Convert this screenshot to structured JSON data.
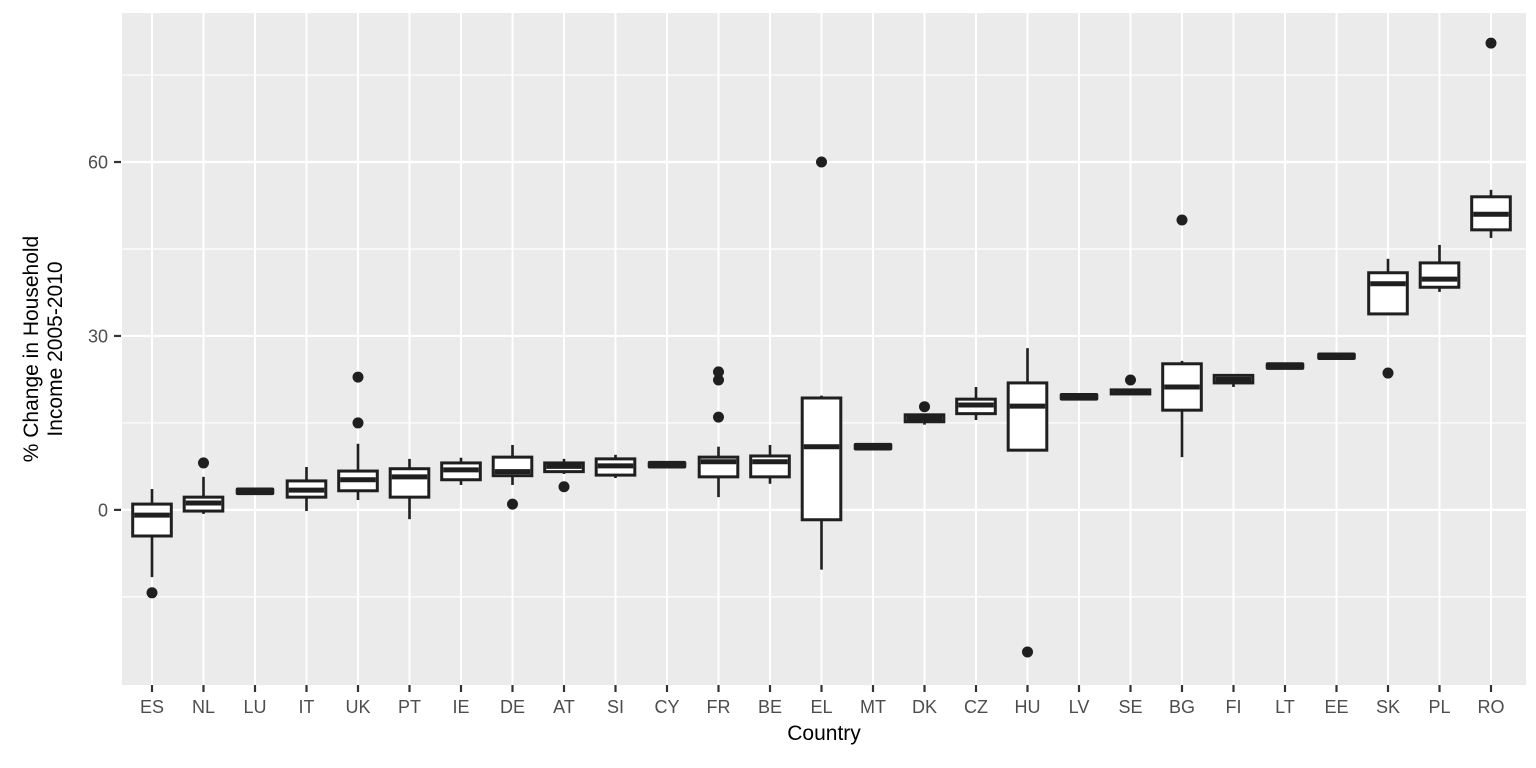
{
  "chart_data": {
    "type": "boxplot",
    "title": "",
    "xlabel": "Country",
    "ylabel": "% Change in Household Income 2005-2010",
    "ylabel_lines": [
      "% Change in Household",
      "Income 2005-2010"
    ],
    "yticks": [
      0,
      30,
      60
    ],
    "yminor": [
      -15,
      15,
      45,
      75
    ],
    "ylim": [
      -30.2,
      85.7
    ],
    "grid": "white major+minor horizontal lines and vertical category lines on grey panel",
    "legend_position": "none",
    "categories": [
      "ES",
      "NL",
      "LU",
      "IT",
      "UK",
      "PT",
      "IE",
      "DE",
      "AT",
      "SI",
      "CY",
      "FR",
      "BE",
      "EL",
      "MT",
      "DK",
      "CZ",
      "HU",
      "LV",
      "SE",
      "BG",
      "FI",
      "LT",
      "EE",
      "SK",
      "PL",
      "RO"
    ],
    "series": [
      {
        "label": "ES",
        "whislo": -11.6,
        "q1": -4.5,
        "med": -0.9,
        "q3": 1.0,
        "whishi": 3.6,
        "outliers": [
          -14.3
        ]
      },
      {
        "label": "NL",
        "whislo": -0.7,
        "q1": -0.2,
        "med": 1.2,
        "q3": 2.2,
        "whishi": 5.7,
        "outliers": [
          8.1
        ]
      },
      {
        "label": "LU",
        "whislo": 3.2,
        "q1": 3.2,
        "med": 3.2,
        "q3": 3.2,
        "whishi": 3.2,
        "outliers": []
      },
      {
        "label": "IT",
        "whislo": -0.2,
        "q1": 2.2,
        "med": 3.4,
        "q3": 5.0,
        "whishi": 7.4,
        "outliers": []
      },
      {
        "label": "UK",
        "whislo": 1.7,
        "q1": 3.3,
        "med": 5.2,
        "q3": 6.7,
        "whishi": 11.4,
        "outliers": [
          15.0,
          22.9
        ]
      },
      {
        "label": "PT",
        "whislo": -1.6,
        "q1": 2.2,
        "med": 5.7,
        "q3": 7.1,
        "whishi": 8.8,
        "outliers": []
      },
      {
        "label": "IE",
        "whislo": 4.3,
        "q1": 5.2,
        "med": 6.9,
        "q3": 8.1,
        "whishi": 9.0,
        "outliers": []
      },
      {
        "label": "DE",
        "whislo": 4.3,
        "q1": 5.9,
        "med": 6.6,
        "q3": 9.1,
        "whishi": 11.2,
        "outliers": [
          1.0
        ]
      },
      {
        "label": "AT",
        "whislo": 6.2,
        "q1": 6.6,
        "med": 7.5,
        "q3": 8.1,
        "whishi": 8.8,
        "outliers": [
          4.0
        ]
      },
      {
        "label": "SI",
        "whislo": 5.5,
        "q1": 6.0,
        "med": 7.6,
        "q3": 8.8,
        "whishi": 9.5,
        "outliers": []
      },
      {
        "label": "CY",
        "whislo": 7.8,
        "q1": 7.8,
        "med": 7.8,
        "q3": 7.8,
        "whishi": 7.8,
        "outliers": []
      },
      {
        "label": "FR",
        "whislo": 2.2,
        "q1": 5.7,
        "med": 8.3,
        "q3": 9.1,
        "whishi": 10.9,
        "outliers": [
          16.0,
          22.4,
          23.8
        ]
      },
      {
        "label": "BE",
        "whislo": 4.5,
        "q1": 5.7,
        "med": 8.3,
        "q3": 9.3,
        "whishi": 11.2,
        "outliers": []
      },
      {
        "label": "EL",
        "whislo": -10.3,
        "q1": -1.7,
        "med": 10.9,
        "q3": 19.3,
        "whishi": 19.7,
        "outliers": [
          60.0
        ]
      },
      {
        "label": "MT",
        "whislo": 10.9,
        "q1": 10.9,
        "med": 10.9,
        "q3": 10.9,
        "whishi": 10.9,
        "outliers": []
      },
      {
        "label": "DK",
        "whislo": 14.7,
        "q1": 15.2,
        "med": 15.8,
        "q3": 16.4,
        "whishi": 16.6,
        "outliers": [
          17.8
        ]
      },
      {
        "label": "CZ",
        "whislo": 15.5,
        "q1": 16.6,
        "med": 18.1,
        "q3": 19.1,
        "whishi": 21.2,
        "outliers": []
      },
      {
        "label": "HU",
        "whislo": 10.3,
        "q1": 10.3,
        "med": 17.9,
        "q3": 21.9,
        "whishi": 27.9,
        "outliers": [
          -24.5
        ]
      },
      {
        "label": "LV",
        "whislo": 19.5,
        "q1": 19.5,
        "med": 19.5,
        "q3": 19.5,
        "whishi": 19.5,
        "outliers": []
      },
      {
        "label": "SE",
        "whislo": 19.8,
        "q1": 20.0,
        "med": 20.3,
        "q3": 20.7,
        "whishi": 20.7,
        "outliers": [
          22.4
        ]
      },
      {
        "label": "BG",
        "whislo": 9.1,
        "q1": 17.2,
        "med": 21.2,
        "q3": 25.2,
        "whishi": 25.7,
        "outliers": [
          50.0
        ]
      },
      {
        "label": "FI",
        "whislo": 21.2,
        "q1": 21.9,
        "med": 22.5,
        "q3": 23.2,
        "whishi": 23.2,
        "outliers": []
      },
      {
        "label": "LT",
        "whislo": 24.8,
        "q1": 24.8,
        "med": 24.8,
        "q3": 24.8,
        "whishi": 24.8,
        "outliers": []
      },
      {
        "label": "EE",
        "whislo": 26.5,
        "q1": 26.5,
        "med": 26.5,
        "q3": 26.5,
        "whishi": 26.5,
        "outliers": []
      },
      {
        "label": "SK",
        "whislo": 33.8,
        "q1": 33.8,
        "med": 39.0,
        "q3": 40.9,
        "whishi": 43.3,
        "outliers": [
          23.6
        ]
      },
      {
        "label": "PL",
        "whislo": 37.6,
        "q1": 38.4,
        "med": 39.8,
        "q3": 42.6,
        "whishi": 45.7,
        "outliers": []
      },
      {
        "label": "RO",
        "whislo": 46.9,
        "q1": 48.3,
        "med": 51.0,
        "q3": 54.0,
        "whishi": 55.2,
        "outliers": [
          80.5
        ]
      }
    ],
    "colors": {
      "panel": "#EBEBEB",
      "grid": "#FFFFFF",
      "box_stroke": "#1F1F1F",
      "box_fill": "#FFFFFF",
      "outlier": "#1F1F1F",
      "axis_text": "#4D4D4D",
      "axis_title": "#000000",
      "tick_mark": "#333333"
    }
  }
}
